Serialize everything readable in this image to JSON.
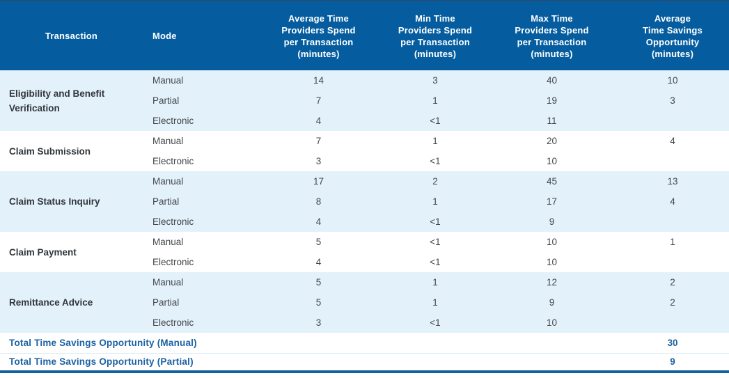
{
  "table": {
    "columns": {
      "transaction": "Transaction",
      "mode": "Mode",
      "avg": "Average Time\nProviders Spend\nper Transaction\n(minutes)",
      "min": "Min Time\nProviders Spend\nper Transaction\n(minutes)",
      "max": "Max Time\nProviders Spend\nper Transaction\n(minutes)",
      "savings": "Average\nTime Savings\nOpportunity\n(minutes)"
    },
    "groups": [
      {
        "transaction": "Eligibility and Benefit Verification",
        "rows": [
          {
            "mode": "Manual",
            "avg": "14",
            "min": "3",
            "max": "40",
            "savings": "10"
          },
          {
            "mode": "Partial",
            "avg": "7",
            "min": "1",
            "max": "19",
            "savings": "3"
          },
          {
            "mode": "Electronic",
            "avg": "4",
            "min": "<1",
            "max": "11",
            "savings": ""
          }
        ]
      },
      {
        "transaction": "Claim Submission",
        "rows": [
          {
            "mode": "Manual",
            "avg": "7",
            "min": "1",
            "max": "20",
            "savings": "4"
          },
          {
            "mode": "Electronic",
            "avg": "3",
            "min": "<1",
            "max": "10",
            "savings": ""
          }
        ]
      },
      {
        "transaction": "Claim Status Inquiry",
        "rows": [
          {
            "mode": "Manual",
            "avg": "17",
            "min": "2",
            "max": "45",
            "savings": "13"
          },
          {
            "mode": "Partial",
            "avg": "8",
            "min": "1",
            "max": "17",
            "savings": "4"
          },
          {
            "mode": "Electronic",
            "avg": "4",
            "min": "<1",
            "max": "9",
            "savings": ""
          }
        ]
      },
      {
        "transaction": "Claim Payment",
        "rows": [
          {
            "mode": "Manual",
            "avg": "5",
            "min": "<1",
            "max": "10",
            "savings": "1"
          },
          {
            "mode": "Electronic",
            "avg": "4",
            "min": "<1",
            "max": "10",
            "savings": ""
          }
        ]
      },
      {
        "transaction": "Remittance Advice",
        "rows": [
          {
            "mode": "Manual",
            "avg": "5",
            "min": "1",
            "max": "12",
            "savings": "2"
          },
          {
            "mode": "Partial",
            "avg": "5",
            "min": "1",
            "max": "9",
            "savings": "2"
          },
          {
            "mode": "Electronic",
            "avg": "3",
            "min": "<1",
            "max": "10",
            "savings": ""
          }
        ]
      }
    ],
    "totals": [
      {
        "label": "Total Time Savings Opportunity (Manual)",
        "value": "30"
      },
      {
        "label": "Total Time Savings Opportunity (Partial)",
        "value": "9"
      }
    ]
  },
  "colors": {
    "header_bg": "#055D9F",
    "header_text": "#FFFFFF",
    "row_light_bg": "#E3F1FB",
    "row_white_bg": "#FFFFFF",
    "body_text": "#43474A",
    "transaction_text": "#32373B",
    "total_text": "#1A61A3",
    "top_border": "#1E4F7E",
    "bottom_border": "#15619F"
  },
  "chart_data": {
    "type": "table",
    "title": "",
    "columns": [
      "Transaction",
      "Mode",
      "Average Time Providers Spend per Transaction (minutes)",
      "Min Time Providers Spend per Transaction (minutes)",
      "Max Time Providers Spend per Transaction (minutes)",
      "Average Time Savings Opportunity (minutes)"
    ],
    "rows": [
      [
        "Eligibility and Benefit Verification",
        "Manual",
        "14",
        "3",
        "40",
        "10"
      ],
      [
        "Eligibility and Benefit Verification",
        "Partial",
        "7",
        "1",
        "19",
        "3"
      ],
      [
        "Eligibility and Benefit Verification",
        "Electronic",
        "4",
        "<1",
        "11",
        ""
      ],
      [
        "Claim Submission",
        "Manual",
        "7",
        "1",
        "20",
        "4"
      ],
      [
        "Claim Submission",
        "Electronic",
        "3",
        "<1",
        "10",
        ""
      ],
      [
        "Claim Status Inquiry",
        "Manual",
        "17",
        "2",
        "45",
        "13"
      ],
      [
        "Claim Status Inquiry",
        "Partial",
        "8",
        "1",
        "17",
        "4"
      ],
      [
        "Claim Status Inquiry",
        "Electronic",
        "4",
        "<1",
        "9",
        ""
      ],
      [
        "Claim Payment",
        "Manual",
        "5",
        "<1",
        "10",
        "1"
      ],
      [
        "Claim Payment",
        "Electronic",
        "4",
        "<1",
        "10",
        ""
      ],
      [
        "Remittance Advice",
        "Manual",
        "5",
        "1",
        "12",
        "2"
      ],
      [
        "Remittance Advice",
        "Partial",
        "5",
        "1",
        "9",
        "2"
      ],
      [
        "Remittance Advice",
        "Electronic",
        "3",
        "<1",
        "10",
        ""
      ],
      [
        "Total Time Savings Opportunity (Manual)",
        "",
        "",
        "",
        "",
        "30"
      ],
      [
        "Total Time Savings Opportunity (Partial)",
        "",
        "",
        "",
        "",
        "9"
      ]
    ]
  }
}
